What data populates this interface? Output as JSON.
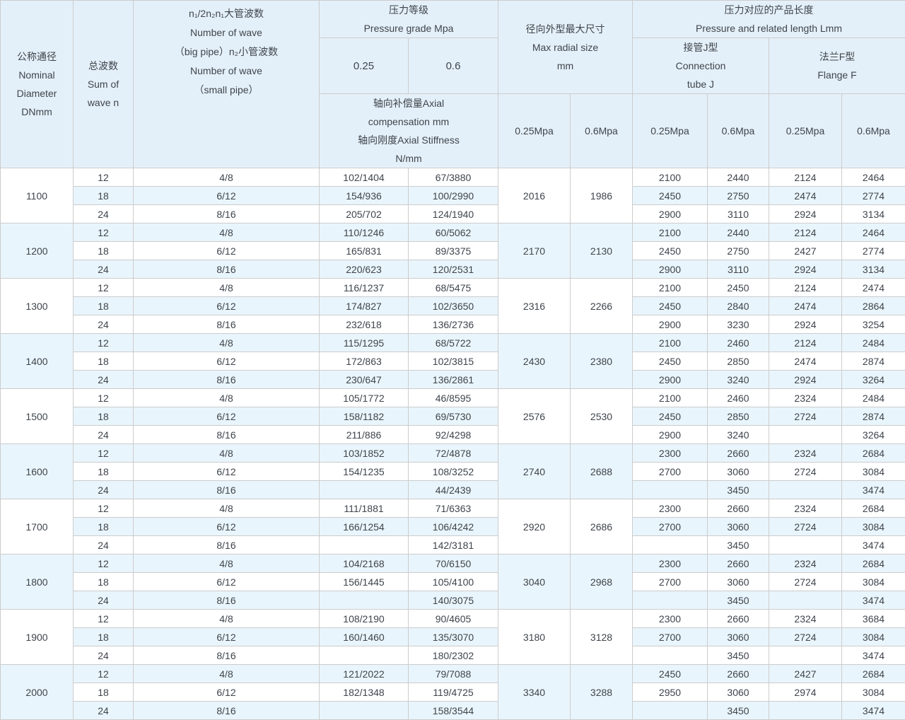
{
  "header": {
    "dn": "公称通径\nNominal\nDiameter\nDNmm",
    "sum_wave": "总波数\nSum of\nwave n",
    "wave_count": "n₁/2n₂n₁大管波数\nNumber of wave\n（big pipe）n₂小管波数\nNumber of wave\n（small pipe）",
    "pressure_grade": "压力等级\nPressure grade Mpa",
    "grade_025": "0.25",
    "grade_06": "0.6",
    "axial": "轴向补偿量Axial\ncompensation mm\n轴向刚度Axial Stiffness\nN/mm",
    "max_radial": "径向外型最大尺寸\nMax radial size\nmm",
    "length": "压力对应的产品长度\nPressure and related length Lmm",
    "tube_j": "接管J型\nConnection\ntube J",
    "flange_f": "法兰F型\nFlange F",
    "mpa_labels": [
      "0.25Mpa",
      "0.6Mpa",
      "0.25Mpa",
      "0.6Mpa",
      "0.25Mpa",
      "0.6Mpa"
    ]
  },
  "colors": {
    "header_bg": "#e4f0f9",
    "row_alt_bg": "#e9f5fc",
    "row_bg": "#ffffff",
    "border": "#cccccc",
    "text": "#3f444b"
  },
  "groups": [
    {
      "dn": "1100",
      "radial_025": "2016",
      "radial_06": "1986",
      "rows": [
        {
          "wave": "12",
          "n": "4/8",
          "a025": "102/1404",
          "a06": "67/3880",
          "j025": "2100",
          "j06": "2440",
          "f025": "2124",
          "f06": "2464"
        },
        {
          "wave": "18",
          "n": "6/12",
          "a025": "154/936",
          "a06": "100/2990",
          "j025": "2450",
          "j06": "2750",
          "f025": "2474",
          "f06": "2774"
        },
        {
          "wave": "24",
          "n": "8/16",
          "a025": "205/702",
          "a06": "124/1940",
          "j025": "2900",
          "j06": "3110",
          "f025": "2924",
          "f06": "3134"
        }
      ]
    },
    {
      "dn": "1200",
      "radial_025": "2170",
      "radial_06": "2130",
      "rows": [
        {
          "wave": "12",
          "n": "4/8",
          "a025": "110/1246",
          "a06": "60/5062",
          "j025": "2100",
          "j06": "2440",
          "f025": "2124",
          "f06": "2464"
        },
        {
          "wave": "18",
          "n": "6/12",
          "a025": "165/831",
          "a06": "89/3375",
          "j025": "2450",
          "j06": "2750",
          "f025": "2427",
          "f06": "2774"
        },
        {
          "wave": "24",
          "n": "8/16",
          "a025": "220/623",
          "a06": "120/2531",
          "j025": "2900",
          "j06": "3110",
          "f025": "2924",
          "f06": "3134"
        }
      ]
    },
    {
      "dn": "1300",
      "radial_025": "2316",
      "radial_06": "2266",
      "rows": [
        {
          "wave": "12",
          "n": "4/8",
          "a025": "116/1237",
          "a06": "68/5475",
          "j025": "2100",
          "j06": "2450",
          "f025": "2124",
          "f06": "2474"
        },
        {
          "wave": "18",
          "n": "6/12",
          "a025": "174/827",
          "a06": "102/3650",
          "j025": "2450",
          "j06": "2840",
          "f025": "2474",
          "f06": "2864"
        },
        {
          "wave": "24",
          "n": "8/16",
          "a025": "232/618",
          "a06": "136/2736",
          "j025": "2900",
          "j06": "3230",
          "f025": "2924",
          "f06": "3254"
        }
      ]
    },
    {
      "dn": "1400",
      "radial_025": "2430",
      "radial_06": "2380",
      "rows": [
        {
          "wave": "12",
          "n": "4/8",
          "a025": "115/1295",
          "a06": "68/5722",
          "j025": "2100",
          "j06": "2460",
          "f025": "2124",
          "f06": "2484"
        },
        {
          "wave": "18",
          "n": "6/12",
          "a025": "172/863",
          "a06": "102/3815",
          "j025": "2450",
          "j06": "2850",
          "f025": "2474",
          "f06": "2874"
        },
        {
          "wave": "24",
          "n": "8/16",
          "a025": "230/647",
          "a06": "136/2861",
          "j025": "2900",
          "j06": "3240",
          "f025": "2924",
          "f06": "3264"
        }
      ]
    },
    {
      "dn": "1500",
      "radial_025": "2576",
      "radial_06": "2530",
      "rows": [
        {
          "wave": "12",
          "n": "4/8",
          "a025": "105/1772",
          "a06": "46/8595",
          "j025": "2100",
          "j06": "2460",
          "f025": "2324",
          "f06": "2484"
        },
        {
          "wave": "18",
          "n": "6/12",
          "a025": "158/1182",
          "a06": "69/5730",
          "j025": "2450",
          "j06": "2850",
          "f025": "2724",
          "f06": "2874"
        },
        {
          "wave": "24",
          "n": "8/16",
          "a025": "211/886",
          "a06": "92/4298",
          "j025": "2900",
          "j06": "3240",
          "f025": "",
          "f06": "3264"
        }
      ]
    },
    {
      "dn": "1600",
      "radial_025": "2740",
      "radial_06": "2688",
      "rows": [
        {
          "wave": "12",
          "n": "4/8",
          "a025": "103/1852",
          "a06": "72/4878",
          "j025": "2300",
          "j06": "2660",
          "f025": "2324",
          "f06": "2684"
        },
        {
          "wave": "18",
          "n": "6/12",
          "a025": "154/1235",
          "a06": "108/3252",
          "j025": "2700",
          "j06": "3060",
          "f025": "2724",
          "f06": "3084"
        },
        {
          "wave": "24",
          "n": "8/16",
          "a025": "",
          "a06": "44/2439",
          "j025": "",
          "j06": "3450",
          "f025": "",
          "f06": "3474"
        }
      ]
    },
    {
      "dn": "1700",
      "radial_025": "2920",
      "radial_06": "2686",
      "rows": [
        {
          "wave": "12",
          "n": "4/8",
          "a025": "111/1881",
          "a06": "71/6363",
          "j025": "2300",
          "j06": "2660",
          "f025": "2324",
          "f06": "2684"
        },
        {
          "wave": "18",
          "n": "6/12",
          "a025": "166/1254",
          "a06": "106/4242",
          "j025": "2700",
          "j06": "3060",
          "f025": "2724",
          "f06": "3084"
        },
        {
          "wave": "24",
          "n": "8/16",
          "a025": "",
          "a06": "142/3181",
          "j025": "",
          "j06": "3450",
          "f025": "",
          "f06": "3474"
        }
      ]
    },
    {
      "dn": "1800",
      "radial_025": "3040",
      "radial_06": "2968",
      "rows": [
        {
          "wave": "12",
          "n": "4/8",
          "a025": "104/2168",
          "a06": "70/6150",
          "j025": "2300",
          "j06": "2660",
          "f025": "2324",
          "f06": "2684"
        },
        {
          "wave": "18",
          "n": "6/12",
          "a025": "156/1445",
          "a06": "105/4100",
          "j025": "2700",
          "j06": "3060",
          "f025": "2724",
          "f06": "3084"
        },
        {
          "wave": "24",
          "n": "8/16",
          "a025": "",
          "a06": "140/3075",
          "j025": "",
          "j06": "3450",
          "f025": "",
          "f06": "3474"
        }
      ]
    },
    {
      "dn": "1900",
      "radial_025": "3180",
      "radial_06": "3128",
      "rows": [
        {
          "wave": "12",
          "n": "4/8",
          "a025": "108/2190",
          "a06": "90/4605",
          "j025": "2300",
          "j06": "2660",
          "f025": "2324",
          "f06": "3684"
        },
        {
          "wave": "18",
          "n": "6/12",
          "a025": "160/1460",
          "a06": "135/3070",
          "j025": "2700",
          "j06": "3060",
          "f025": "2724",
          "f06": "3084"
        },
        {
          "wave": "24",
          "n": "8/16",
          "a025": "",
          "a06": "180/2302",
          "j025": "",
          "j06": "3450",
          "f025": "",
          "f06": "3474"
        }
      ]
    },
    {
      "dn": "2000",
      "radial_025": "3340",
      "radial_06": "3288",
      "rows": [
        {
          "wave": "12",
          "n": "4/8",
          "a025": "121/2022",
          "a06": "79/7088",
          "j025": "2450",
          "j06": "2660",
          "f025": "2427",
          "f06": "2684"
        },
        {
          "wave": "18",
          "n": "6/12",
          "a025": "182/1348",
          "a06": "119/4725",
          "j025": "2950",
          "j06": "3060",
          "f025": "2974",
          "f06": "3084"
        },
        {
          "wave": "24",
          "n": "8/16",
          "a025": "",
          "a06": "158/3544",
          "j025": "",
          "j06": "3450",
          "f025": "",
          "f06": "3474"
        }
      ]
    }
  ]
}
